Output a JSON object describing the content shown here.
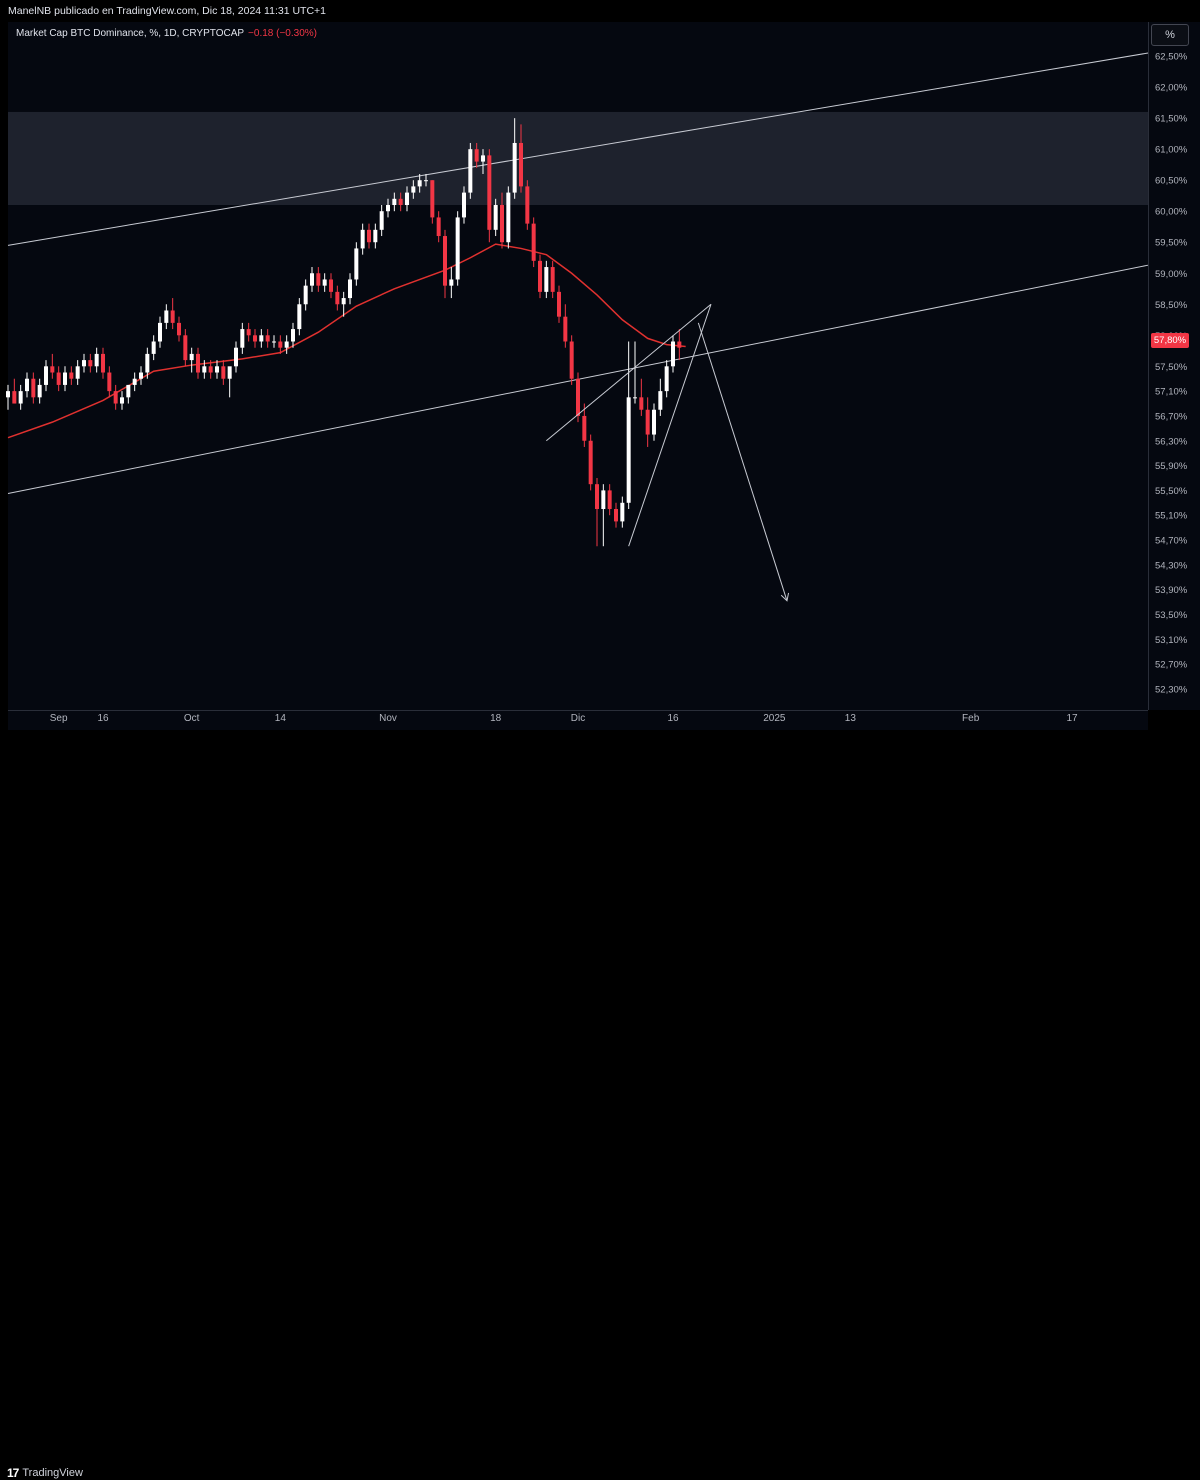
{
  "header": {
    "published_line": "ManelNB publicado en TradingView.com, Dic 18, 2024 11:31 UTC+1"
  },
  "legend": {
    "symbol_line": "Market Cap BTC Dominance, %, 1D, CRYPTOCAP",
    "change": "−0.18 (−0.30%)"
  },
  "scale_button": {
    "label": "%"
  },
  "last_price_label": "57,80%",
  "footer": {
    "brand": "TradingView",
    "logo_icon": "tradingview-logo-icon"
  },
  "colors": {
    "up": "#ffffff",
    "down": "#f23645",
    "ma": "#e0312f",
    "zone": "#1e222d",
    "trendline": "#c8cbd3",
    "background": "#050810"
  },
  "chart_data": {
    "type": "candlestick",
    "title": "",
    "xlabel": "",
    "ylabel": "",
    "ylim": [
      51.96,
      63.05
    ],
    "y_ticks": [
      "62,50%",
      "62,00%",
      "61,50%",
      "61,00%",
      "60,50%",
      "60,00%",
      "59,50%",
      "59,00%",
      "58,50%",
      "58,00%",
      "57,50%",
      "57,10%",
      "56,70%",
      "56,30%",
      "55,90%",
      "55,50%",
      "55,10%",
      "54,70%",
      "54,30%",
      "53,90%",
      "53,50%",
      "53,10%",
      "52,70%",
      "52,30%"
    ],
    "y_tick_values": [
      62.5,
      62.0,
      61.5,
      61.0,
      60.5,
      60.0,
      59.5,
      59.0,
      58.5,
      58.0,
      57.5,
      57.1,
      56.7,
      56.3,
      55.9,
      55.5,
      55.1,
      54.7,
      54.3,
      53.9,
      53.5,
      53.1,
      52.7,
      52.3
    ],
    "x_ticks": [
      {
        "label": "Sep",
        "day": 9
      },
      {
        "label": "16",
        "day": 16
      },
      {
        "label": "Oct",
        "day": 30
      },
      {
        "label": "14",
        "day": 44
      },
      {
        "label": "Nov",
        "day": 61
      },
      {
        "label": "18",
        "day": 78
      },
      {
        "label": "Dic",
        "day": 91
      },
      {
        "label": "16",
        "day": 106
      },
      {
        "label": "2025",
        "day": 122
      },
      {
        "label": "13",
        "day": 134
      },
      {
        "label": "Feb",
        "day": 153
      },
      {
        "label": "17",
        "day": 169
      }
    ],
    "x_range_days": [
      1,
      181
    ],
    "series": [
      {
        "name": "",
        "kind": "ohlc",
        "values": [
          [
            57.0,
            57.2,
            56.8,
            57.1
          ],
          [
            57.1,
            57.3,
            56.9,
            56.9
          ],
          [
            56.9,
            57.2,
            56.8,
            57.1
          ],
          [
            57.1,
            57.4,
            57.0,
            57.3
          ],
          [
            57.3,
            57.4,
            56.9,
            57.0
          ],
          [
            57.0,
            57.3,
            56.9,
            57.2
          ],
          [
            57.2,
            57.6,
            57.1,
            57.5
          ],
          [
            57.5,
            57.7,
            57.3,
            57.4
          ],
          [
            57.4,
            57.5,
            57.1,
            57.2
          ],
          [
            57.2,
            57.5,
            57.1,
            57.4
          ],
          [
            57.4,
            57.5,
            57.2,
            57.3
          ],
          [
            57.3,
            57.6,
            57.2,
            57.5
          ],
          [
            57.5,
            57.7,
            57.4,
            57.6
          ],
          [
            57.6,
            57.7,
            57.4,
            57.5
          ],
          [
            57.5,
            57.8,
            57.4,
            57.7
          ],
          [
            57.7,
            57.8,
            57.3,
            57.4
          ],
          [
            57.4,
            57.5,
            57.0,
            57.1
          ],
          [
            57.1,
            57.2,
            56.8,
            56.9
          ],
          [
            56.9,
            57.1,
            56.8,
            57.0
          ],
          [
            57.0,
            57.2,
            56.9,
            57.2
          ],
          [
            57.2,
            57.4,
            57.1,
            57.3
          ],
          [
            57.3,
            57.5,
            57.2,
            57.4
          ],
          [
            57.4,
            57.8,
            57.3,
            57.7
          ],
          [
            57.7,
            58.0,
            57.6,
            57.9
          ],
          [
            57.9,
            58.3,
            57.8,
            58.2
          ],
          [
            58.2,
            58.5,
            58.1,
            58.4
          ],
          [
            58.4,
            58.6,
            58.1,
            58.2
          ],
          [
            58.2,
            58.3,
            57.9,
            58.0
          ],
          [
            58.0,
            58.1,
            57.5,
            57.6
          ],
          [
            57.6,
            57.8,
            57.4,
            57.7
          ],
          [
            57.7,
            57.8,
            57.3,
            57.4
          ],
          [
            57.4,
            57.6,
            57.3,
            57.5
          ],
          [
            57.5,
            57.6,
            57.3,
            57.4
          ],
          [
            57.4,
            57.6,
            57.3,
            57.5
          ],
          [
            57.5,
            57.6,
            57.2,
            57.3
          ],
          [
            57.3,
            57.4,
            57.0,
            57.5
          ],
          [
            57.5,
            57.9,
            57.4,
            57.8
          ],
          [
            57.8,
            58.2,
            57.7,
            58.1
          ],
          [
            58.1,
            58.2,
            57.9,
            58.0
          ],
          [
            58.0,
            58.1,
            57.8,
            57.9
          ],
          [
            57.9,
            58.1,
            57.8,
            58.0
          ],
          [
            58.0,
            58.1,
            57.8,
            57.9
          ],
          [
            57.9,
            58.0,
            57.8,
            57.9
          ],
          [
            57.9,
            58.0,
            57.7,
            57.8
          ],
          [
            57.8,
            58.0,
            57.7,
            57.9
          ],
          [
            57.9,
            58.2,
            57.8,
            58.1
          ],
          [
            58.1,
            58.6,
            58.0,
            58.5
          ],
          [
            58.5,
            58.9,
            58.4,
            58.8
          ],
          [
            58.8,
            59.1,
            58.7,
            59.0
          ],
          [
            59.0,
            59.1,
            58.7,
            58.8
          ],
          [
            58.8,
            59.0,
            58.7,
            58.9
          ],
          [
            58.9,
            59.0,
            58.6,
            58.7
          ],
          [
            58.7,
            58.8,
            58.4,
            58.5
          ],
          [
            58.5,
            58.7,
            58.3,
            58.6
          ],
          [
            58.6,
            59.0,
            58.5,
            58.9
          ],
          [
            58.9,
            59.5,
            58.8,
            59.4
          ],
          [
            59.4,
            59.8,
            59.3,
            59.7
          ],
          [
            59.7,
            59.8,
            59.4,
            59.5
          ],
          [
            59.5,
            59.8,
            59.4,
            59.7
          ],
          [
            59.7,
            60.1,
            59.6,
            60.0
          ],
          [
            60.0,
            60.2,
            59.9,
            60.1
          ],
          [
            60.1,
            60.3,
            60.0,
            60.2
          ],
          [
            60.2,
            60.3,
            60.0,
            60.1
          ],
          [
            60.1,
            60.4,
            60.0,
            60.3
          ],
          [
            60.3,
            60.5,
            60.2,
            60.4
          ],
          [
            60.4,
            60.6,
            60.3,
            60.5
          ],
          [
            60.5,
            60.6,
            60.4,
            60.5
          ],
          [
            60.5,
            60.5,
            59.8,
            59.9
          ],
          [
            59.9,
            60.0,
            59.5,
            59.6
          ],
          [
            59.6,
            59.7,
            58.6,
            58.8
          ],
          [
            58.8,
            59.1,
            58.6,
            58.9
          ],
          [
            58.9,
            60.0,
            58.8,
            59.9
          ],
          [
            59.9,
            60.4,
            59.8,
            60.3
          ],
          [
            60.3,
            61.1,
            60.2,
            61.0
          ],
          [
            61.0,
            61.1,
            60.7,
            60.8
          ],
          [
            60.8,
            61.0,
            60.6,
            60.9
          ],
          [
            60.9,
            61.0,
            59.5,
            59.7
          ],
          [
            59.7,
            60.2,
            59.6,
            60.1
          ],
          [
            60.1,
            60.3,
            59.4,
            59.5
          ],
          [
            59.5,
            60.4,
            59.4,
            60.3
          ],
          [
            60.3,
            61.5,
            60.2,
            61.1
          ],
          [
            61.1,
            61.4,
            60.3,
            60.4
          ],
          [
            60.4,
            60.5,
            59.7,
            59.8
          ],
          [
            59.8,
            59.9,
            59.1,
            59.2
          ],
          [
            59.2,
            59.3,
            58.6,
            58.7
          ],
          [
            58.7,
            59.2,
            58.6,
            59.1
          ],
          [
            59.1,
            59.2,
            58.6,
            58.7
          ],
          [
            58.7,
            58.8,
            58.2,
            58.3
          ],
          [
            58.3,
            58.5,
            57.8,
            57.9
          ],
          [
            57.9,
            58.0,
            57.2,
            57.3
          ],
          [
            57.3,
            57.4,
            56.6,
            56.7
          ],
          [
            56.7,
            56.9,
            56.2,
            56.3
          ],
          [
            56.3,
            56.4,
            55.5,
            55.6
          ],
          [
            55.6,
            55.7,
            54.6,
            55.2
          ],
          [
            55.2,
            55.6,
            54.6,
            55.5
          ],
          [
            55.5,
            55.6,
            55.1,
            55.2
          ],
          [
            55.2,
            55.3,
            54.9,
            55.0
          ],
          [
            55.0,
            55.4,
            54.9,
            55.3
          ],
          [
            55.3,
            57.9,
            55.2,
            57.0
          ],
          [
            57.0,
            57.9,
            56.9,
            57.0
          ],
          [
            57.0,
            57.3,
            56.7,
            56.8
          ],
          [
            56.8,
            57.0,
            56.2,
            56.4
          ],
          [
            56.4,
            56.9,
            56.3,
            56.8
          ],
          [
            56.8,
            57.3,
            56.7,
            57.1
          ],
          [
            57.1,
            57.6,
            57.0,
            57.5
          ],
          [
            57.5,
            58.0,
            57.4,
            57.9
          ],
          [
            57.9,
            58.1,
            57.6,
            57.8
          ]
        ]
      },
      {
        "name": "",
        "kind": "moving-average",
        "x": [
          1,
          8,
          16,
          24,
          30,
          38,
          44,
          50,
          56,
          62,
          70,
          74,
          78,
          82,
          86,
          90,
          94,
          98,
          102,
          105,
          108
        ],
        "values": [
          56.35,
          56.6,
          56.95,
          57.42,
          57.52,
          57.62,
          57.72,
          58.05,
          58.47,
          58.75,
          59.05,
          59.25,
          59.47,
          59.4,
          59.3,
          59.0,
          58.65,
          58.25,
          57.95,
          57.85,
          57.82
        ]
      }
    ],
    "annotations": {
      "horizontal_zone": [
        60.1,
        61.6
      ],
      "channel_upper": {
        "x": [
          1,
          181
        ],
        "y": [
          59.45,
          62.55
        ]
      },
      "channel_lower": {
        "x": [
          1,
          181
        ],
        "y": [
          55.45,
          59.13
        ]
      },
      "wedge_upper": {
        "x": [
          86,
          112
        ],
        "y": [
          56.3,
          58.5
        ]
      },
      "wedge_lower": {
        "x": [
          99,
          112
        ],
        "y": [
          54.6,
          58.5
        ]
      },
      "projection_arrow": {
        "x": [
          110,
          124
        ],
        "y": [
          58.2,
          53.72
        ]
      }
    }
  }
}
